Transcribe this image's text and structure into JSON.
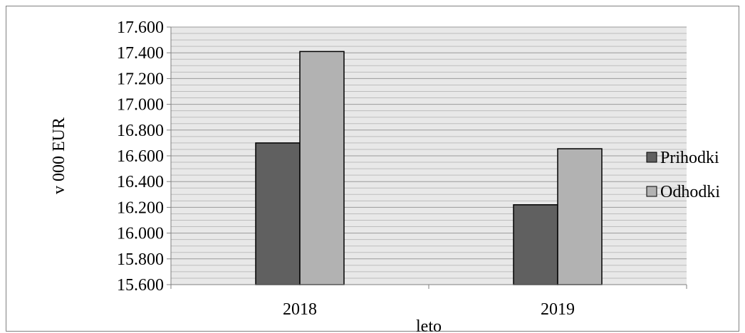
{
  "chart_data": {
    "type": "bar",
    "categories": [
      "2018",
      "2019"
    ],
    "series": [
      {
        "name": "Prihodki",
        "values": [
          16700,
          16220
        ],
        "color": "#606060"
      },
      {
        "name": "Odhodki",
        "values": [
          17410,
          16655
        ],
        "color": "#b2b2b2"
      }
    ],
    "xlabel": "leto",
    "ylabel": "v 000 EUR",
    "ylim": [
      15600,
      17600
    ],
    "yticks": [
      {
        "value": 17600,
        "label": "17.600"
      },
      {
        "value": 17400,
        "label": "17.400"
      },
      {
        "value": 17200,
        "label": "17.200"
      },
      {
        "value": 17000,
        "label": "17.000"
      },
      {
        "value": 16800,
        "label": "16.800"
      },
      {
        "value": 16600,
        "label": "16.600"
      },
      {
        "value": 16400,
        "label": "16.400"
      },
      {
        "value": 16200,
        "label": "16.200"
      },
      {
        "value": 16000,
        "label": "16.000"
      },
      {
        "value": 15800,
        "label": "15.800"
      },
      {
        "value": 15600,
        "label": "15.600"
      }
    ],
    "minor_gridline_step": 50,
    "grid": true,
    "legend_position": "right",
    "plot_background": "#e8e8e8"
  }
}
